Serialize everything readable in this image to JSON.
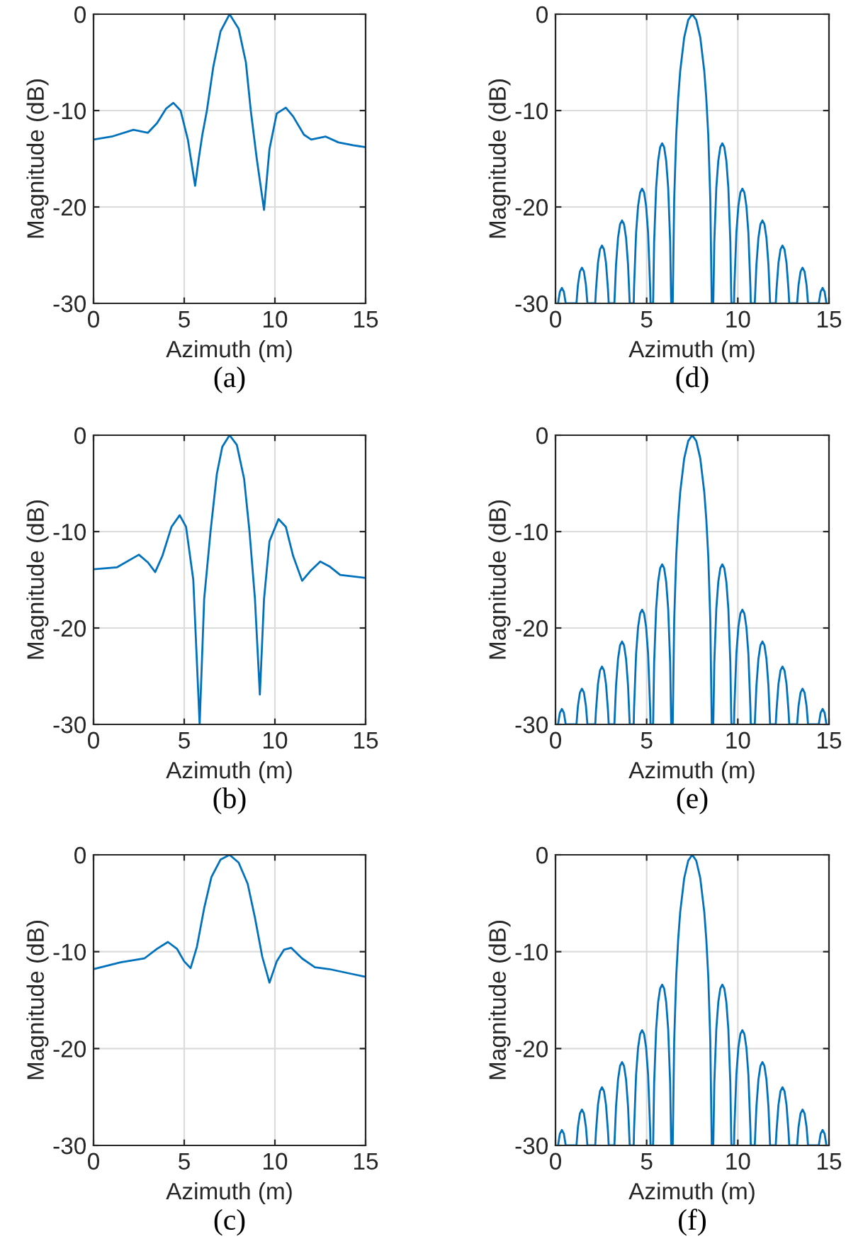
{
  "chart_data": [
    {
      "type": "line",
      "title": "(a)",
      "xlabel": "Azimuth (m)",
      "ylabel": "Magnitude (dB)",
      "xlim": [
        0,
        15
      ],
      "ylim": [
        -30,
        0
      ],
      "xticks": [
        0,
        5,
        10,
        15
      ],
      "yticks": [
        -30,
        -20,
        -10,
        0
      ],
      "grid": true,
      "series": [
        {
          "color": "#0072bd",
          "x": [
            0,
            1,
            2.2,
            3.0,
            3.5,
            4.0,
            4.4,
            4.8,
            5.2,
            5.6,
            5.8,
            6.0,
            6.25,
            6.6,
            7.0,
            7.5,
            8.0,
            8.4,
            8.67,
            9.0,
            9.4,
            9.7,
            10.1,
            10.6,
            11.0,
            11.6,
            12.0,
            12.8,
            13.5,
            14.3,
            15
          ],
          "values": [
            -13.0,
            -12.7,
            -12.0,
            -12.3,
            -11.3,
            -9.8,
            -9.2,
            -10.0,
            -13.0,
            -17.8,
            -15.0,
            -12.5,
            -10.0,
            -5.5,
            -1.8,
            0,
            -1.5,
            -5.0,
            -10.0,
            -15.0,
            -20.3,
            -14.0,
            -10.3,
            -9.7,
            -10.6,
            -12.5,
            -13.0,
            -12.7,
            -13.3,
            -13.6,
            -13.8
          ]
        }
      ]
    },
    {
      "type": "line",
      "title": "(d)",
      "xlabel": "Azimuth (m)",
      "ylabel": "Magnitude (dB)",
      "xlim": [
        0,
        15
      ],
      "ylim": [
        -30,
        0
      ],
      "xticks": [
        0,
        5,
        10,
        15
      ],
      "yticks": [
        -30,
        -20,
        -10,
        0
      ],
      "grid": true,
      "series": [
        {
          "color": "#0072bd",
          "x": [
            0.14,
            0.24,
            0.35,
            0.46,
            0.56,
            1.15,
            1.23,
            1.34,
            1.45,
            1.56,
            1.67,
            1.75,
            2.18,
            2.22,
            2.33,
            2.44,
            2.55,
            2.66,
            2.77,
            2.88,
            2.92,
            3.23,
            3.32,
            3.43,
            3.54,
            3.65,
            3.76,
            3.87,
            3.98,
            4.07,
            4.29,
            4.31,
            4.42,
            4.53,
            4.64,
            4.75,
            4.86,
            4.97,
            5.08,
            5.19,
            5.21,
            5.35,
            5.36,
            5.41,
            5.52,
            5.63,
            5.74,
            5.85,
            5.96,
            6.07,
            6.18,
            6.29,
            6.34,
            6.35,
            6.43,
            6.51,
            6.62,
            6.73,
            6.84,
            7.06,
            7.28,
            7.5,
            7.72,
            7.94,
            8.16,
            8.27,
            8.38,
            8.49,
            8.57,
            8.65,
            8.66,
            8.71,
            8.82,
            8.93,
            9.04,
            9.15,
            9.26,
            9.37,
            9.48,
            9.59,
            9.64,
            9.65,
            9.79,
            9.81,
            9.92,
            10.03,
            10.14,
            10.25,
            10.36,
            10.47,
            10.58,
            10.69,
            10.71,
            10.93,
            11.02,
            11.13,
            11.24,
            11.35,
            11.46,
            11.57,
            11.68,
            11.77,
            12.08,
            12.12,
            12.23,
            12.34,
            12.45,
            12.56,
            12.67,
            12.78,
            12.82,
            13.25,
            13.33,
            13.44,
            13.55,
            13.66,
            13.77,
            13.85,
            14.44,
            14.54,
            14.65,
            14.76,
            14.86
          ],
          "values": [
            -30,
            -28.8,
            -28.4,
            -28.8,
            -30,
            -30,
            -28.1,
            -26.7,
            -26.3,
            -26.7,
            -28.1,
            -30,
            -30,
            -28.6,
            -25.8,
            -24.4,
            -24.0,
            -24.4,
            -25.8,
            -28.6,
            -30,
            -30,
            -26.0,
            -23.2,
            -21.8,
            -21.4,
            -21.8,
            -23.2,
            -26.0,
            -30,
            -30,
            -28.3,
            -22.7,
            -19.9,
            -18.5,
            -18.1,
            -18.5,
            -19.9,
            -22.7,
            -28.3,
            -30,
            -30,
            -29.4,
            -23.6,
            -18.0,
            -15.2,
            -13.8,
            -13.4,
            -13.8,
            -15.2,
            -18.0,
            -23.6,
            -29.4,
            -30,
            -30,
            -19.2,
            -12.6,
            -8.7,
            -5.9,
            -2.4,
            -0.6,
            0,
            -0.6,
            -2.4,
            -5.9,
            -8.7,
            -12.6,
            -19.2,
            -30,
            -30,
            -29.4,
            -23.6,
            -18.0,
            -15.2,
            -13.8,
            -13.4,
            -13.8,
            -15.2,
            -18.0,
            -23.6,
            -29.4,
            -30,
            -30,
            -28.3,
            -22.7,
            -19.9,
            -18.5,
            -18.1,
            -18.5,
            -19.9,
            -22.7,
            -28.3,
            -30,
            -30,
            -26.0,
            -23.2,
            -21.8,
            -21.4,
            -21.8,
            -23.2,
            -26.0,
            -30,
            -30,
            -28.6,
            -25.8,
            -24.4,
            -24.0,
            -24.4,
            -25.8,
            -28.6,
            -30,
            -30,
            -28.1,
            -26.7,
            -26.3,
            -26.7,
            -28.1,
            -30,
            -30,
            -28.8,
            -28.4,
            -28.8,
            -30
          ]
        }
      ]
    },
    {
      "type": "line",
      "title": "(b)",
      "xlabel": "Azimuth (m)",
      "ylabel": "Magnitude (dB)",
      "xlim": [
        0,
        15
      ],
      "ylim": [
        -30,
        0
      ],
      "xticks": [
        0,
        5,
        10,
        15
      ],
      "yticks": [
        -30,
        -20,
        -10,
        0
      ],
      "grid": true,
      "series": [
        {
          "color": "#0072bd",
          "x": [
            0,
            1.3,
            2.5,
            3.0,
            3.4,
            3.8,
            4.3,
            4.75,
            5.1,
            5.5,
            5.85,
            6.1,
            6.45,
            6.8,
            7.1,
            7.5,
            7.9,
            8.3,
            8.6,
            8.9,
            9.17,
            9.4,
            9.7,
            10.2,
            10.6,
            11.0,
            11.5,
            12.0,
            12.5,
            13.0,
            13.6,
            15
          ],
          "values": [
            -13.9,
            -13.7,
            -12.4,
            -13.2,
            -14.2,
            -12.5,
            -9.5,
            -8.3,
            -9.5,
            -15.0,
            -30,
            -17.0,
            -10.0,
            -4.0,
            -1.2,
            0,
            -1.0,
            -4.5,
            -10.0,
            -17.0,
            -26.9,
            -17.0,
            -11.0,
            -8.7,
            -9.5,
            -12.5,
            -15.1,
            -14.0,
            -13.1,
            -13.6,
            -14.5,
            -14.8
          ]
        }
      ]
    },
    {
      "type": "line",
      "title": "(e)",
      "xlabel": "Azimuth (m)",
      "ylabel": "Magnitude (dB)",
      "xlim": [
        0,
        15
      ],
      "ylim": [
        -30,
        0
      ],
      "xticks": [
        0,
        5,
        10,
        15
      ],
      "yticks": [
        -30,
        -20,
        -10,
        0
      ],
      "grid": true,
      "series": [
        {
          "color": "#0072bd",
          "x": [
            0.14,
            0.24,
            0.35,
            0.46,
            0.56,
            1.15,
            1.23,
            1.34,
            1.45,
            1.56,
            1.67,
            1.75,
            2.18,
            2.22,
            2.33,
            2.44,
            2.55,
            2.66,
            2.77,
            2.88,
            2.92,
            3.23,
            3.32,
            3.43,
            3.54,
            3.65,
            3.76,
            3.87,
            3.98,
            4.07,
            4.29,
            4.31,
            4.42,
            4.53,
            4.64,
            4.75,
            4.86,
            4.97,
            5.08,
            5.19,
            5.21,
            5.35,
            5.36,
            5.41,
            5.52,
            5.63,
            5.74,
            5.85,
            5.96,
            6.07,
            6.18,
            6.29,
            6.34,
            6.35,
            6.43,
            6.51,
            6.62,
            6.73,
            6.84,
            7.06,
            7.28,
            7.5,
            7.72,
            7.94,
            8.16,
            8.27,
            8.38,
            8.49,
            8.57,
            8.65,
            8.66,
            8.71,
            8.82,
            8.93,
            9.04,
            9.15,
            9.26,
            9.37,
            9.48,
            9.59,
            9.64,
            9.65,
            9.79,
            9.81,
            9.92,
            10.03,
            10.14,
            10.25,
            10.36,
            10.47,
            10.58,
            10.69,
            10.71,
            10.93,
            11.02,
            11.13,
            11.24,
            11.35,
            11.46,
            11.57,
            11.68,
            11.77,
            12.08,
            12.12,
            12.23,
            12.34,
            12.45,
            12.56,
            12.67,
            12.78,
            12.82,
            13.25,
            13.33,
            13.44,
            13.55,
            13.66,
            13.77,
            13.85,
            14.44,
            14.54,
            14.65,
            14.76,
            14.86
          ],
          "values": [
            -30,
            -28.8,
            -28.4,
            -28.8,
            -30,
            -30,
            -28.1,
            -26.7,
            -26.3,
            -26.7,
            -28.1,
            -30,
            -30,
            -28.6,
            -25.8,
            -24.4,
            -24.0,
            -24.4,
            -25.8,
            -28.6,
            -30,
            -30,
            -26.0,
            -23.2,
            -21.8,
            -21.4,
            -21.8,
            -23.2,
            -26.0,
            -30,
            -30,
            -28.3,
            -22.7,
            -19.9,
            -18.5,
            -18.1,
            -18.5,
            -19.9,
            -22.7,
            -28.3,
            -30,
            -30,
            -29.4,
            -23.6,
            -18.0,
            -15.2,
            -13.8,
            -13.4,
            -13.8,
            -15.2,
            -18.0,
            -23.6,
            -29.4,
            -30,
            -30,
            -19.2,
            -12.6,
            -8.7,
            -5.9,
            -2.4,
            -0.6,
            0,
            -0.6,
            -2.4,
            -5.9,
            -8.7,
            -12.6,
            -19.2,
            -30,
            -30,
            -29.4,
            -23.6,
            -18.0,
            -15.2,
            -13.8,
            -13.4,
            -13.8,
            -15.2,
            -18.0,
            -23.6,
            -29.4,
            -30,
            -30,
            -28.3,
            -22.7,
            -19.9,
            -18.5,
            -18.1,
            -18.5,
            -19.9,
            -22.7,
            -28.3,
            -30,
            -30,
            -26.0,
            -23.2,
            -21.8,
            -21.4,
            -21.8,
            -23.2,
            -26.0,
            -30,
            -30,
            -28.6,
            -25.8,
            -24.4,
            -24.0,
            -24.4,
            -25.8,
            -28.6,
            -30,
            -30,
            -28.1,
            -26.7,
            -26.3,
            -26.7,
            -28.1,
            -30,
            -30,
            -28.8,
            -28.4,
            -28.8,
            -30
          ]
        }
      ]
    },
    {
      "type": "line",
      "title": "(c)",
      "xlabel": "Azimuth (m)",
      "ylabel": "Magnitude (dB)",
      "xlim": [
        0,
        15
      ],
      "ylim": [
        -30,
        0
      ],
      "xticks": [
        0,
        5,
        10,
        15
      ],
      "yticks": [
        -30,
        -20,
        -10,
        0
      ],
      "grid": true,
      "series": [
        {
          "color": "#0072bd",
          "x": [
            0,
            1.5,
            2.8,
            3.5,
            4.1,
            4.6,
            5.0,
            5.35,
            5.7,
            6.1,
            6.5,
            7.0,
            7.5,
            8.0,
            8.5,
            8.9,
            9.3,
            9.7,
            10.1,
            10.5,
            10.9,
            11.5,
            12.2,
            13.0,
            14,
            15
          ],
          "values": [
            -11.8,
            -11.1,
            -10.7,
            -9.7,
            -9.0,
            -9.7,
            -11.0,
            -11.7,
            -9.5,
            -5.5,
            -2.3,
            -0.5,
            0,
            -0.8,
            -3.0,
            -6.5,
            -10.5,
            -13.2,
            -11.0,
            -9.8,
            -9.6,
            -10.7,
            -11.6,
            -11.8,
            -12.2,
            -12.6
          ]
        }
      ]
    },
    {
      "type": "line",
      "title": "(f)",
      "xlabel": "Azimuth (m)",
      "ylabel": "Magnitude (dB)",
      "xlim": [
        0,
        15
      ],
      "ylim": [
        -30,
        0
      ],
      "xticks": [
        0,
        5,
        10,
        15
      ],
      "yticks": [
        -30,
        -20,
        -10,
        0
      ],
      "grid": true,
      "series": [
        {
          "color": "#0072bd",
          "x": [
            0.14,
            0.24,
            0.35,
            0.46,
            0.56,
            1.15,
            1.23,
            1.34,
            1.45,
            1.56,
            1.67,
            1.75,
            2.18,
            2.22,
            2.33,
            2.44,
            2.55,
            2.66,
            2.77,
            2.88,
            2.92,
            3.23,
            3.32,
            3.43,
            3.54,
            3.65,
            3.76,
            3.87,
            3.98,
            4.07,
            4.29,
            4.31,
            4.42,
            4.53,
            4.64,
            4.75,
            4.86,
            4.97,
            5.08,
            5.19,
            5.21,
            5.35,
            5.36,
            5.41,
            5.52,
            5.63,
            5.74,
            5.85,
            5.96,
            6.07,
            6.18,
            6.29,
            6.34,
            6.35,
            6.43,
            6.51,
            6.62,
            6.73,
            6.84,
            7.06,
            7.28,
            7.5,
            7.72,
            7.94,
            8.16,
            8.27,
            8.38,
            8.49,
            8.57,
            8.65,
            8.66,
            8.71,
            8.82,
            8.93,
            9.04,
            9.15,
            9.26,
            9.37,
            9.48,
            9.59,
            9.64,
            9.65,
            9.79,
            9.81,
            9.92,
            10.03,
            10.14,
            10.25,
            10.36,
            10.47,
            10.58,
            10.69,
            10.71,
            10.93,
            11.02,
            11.13,
            11.24,
            11.35,
            11.46,
            11.57,
            11.68,
            11.77,
            12.08,
            12.12,
            12.23,
            12.34,
            12.45,
            12.56,
            12.67,
            12.78,
            12.82,
            13.25,
            13.33,
            13.44,
            13.55,
            13.66,
            13.77,
            13.85,
            14.44,
            14.54,
            14.65,
            14.76,
            14.86
          ],
          "values": [
            -30,
            -28.8,
            -28.4,
            -28.8,
            -30,
            -30,
            -28.1,
            -26.7,
            -26.3,
            -26.7,
            -28.1,
            -30,
            -30,
            -28.6,
            -25.8,
            -24.4,
            -24.0,
            -24.4,
            -25.8,
            -28.6,
            -30,
            -30,
            -26.0,
            -23.2,
            -21.8,
            -21.4,
            -21.8,
            -23.2,
            -26.0,
            -30,
            -30,
            -28.3,
            -22.7,
            -19.9,
            -18.5,
            -18.1,
            -18.5,
            -19.9,
            -22.7,
            -28.3,
            -30,
            -30,
            -29.4,
            -23.6,
            -18.0,
            -15.2,
            -13.8,
            -13.4,
            -13.8,
            -15.2,
            -18.0,
            -23.6,
            -29.4,
            -30,
            -30,
            -19.2,
            -12.6,
            -8.7,
            -5.9,
            -2.4,
            -0.6,
            0,
            -0.6,
            -2.4,
            -5.9,
            -8.7,
            -12.6,
            -19.2,
            -30,
            -30,
            -29.4,
            -23.6,
            -18.0,
            -15.2,
            -13.8,
            -13.4,
            -13.8,
            -15.2,
            -18.0,
            -23.6,
            -29.4,
            -30,
            -30,
            -28.3,
            -22.7,
            -19.9,
            -18.5,
            -18.1,
            -18.5,
            -19.9,
            -22.7,
            -28.3,
            -30,
            -30,
            -26.0,
            -23.2,
            -21.8,
            -21.4,
            -21.8,
            -23.2,
            -26.0,
            -30,
            -30,
            -28.6,
            -25.8,
            -24.4,
            -24.0,
            -24.4,
            -25.8,
            -28.6,
            -30,
            -30,
            -28.1,
            -26.7,
            -26.3,
            -26.7,
            -28.1,
            -30,
            -30,
            -28.8,
            -28.4,
            -28.8,
            -30
          ]
        }
      ]
    }
  ]
}
